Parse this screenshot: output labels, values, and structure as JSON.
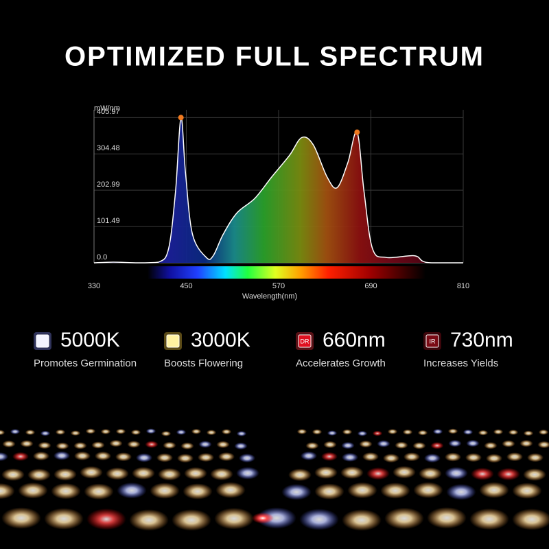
{
  "chart_data": {
    "type": "area",
    "title": "OPTIMIZED FULL SPECTRUM",
    "y_label": "mW/nm",
    "x_label": "Wavelength(nm)",
    "line_color": "#ffffff",
    "marker_color": "#f07a20",
    "grid": true,
    "x": [
      330,
      355,
      387,
      414,
      427,
      436,
      443,
      449,
      458,
      476,
      485,
      498,
      516,
      539,
      561,
      584,
      600,
      615,
      633,
      646,
      660,
      672,
      681,
      692,
      710,
      746,
      757,
      769,
      810
    ],
    "values": [
      0,
      2,
      0,
      2,
      40,
      200,
      406,
      250,
      80,
      15,
      20,
      80,
      140,
      180,
      240,
      300,
      350,
      330,
      240,
      210,
      280,
      365,
      200,
      40,
      15,
      20,
      5,
      0,
      0
    ],
    "xlim": [
      330,
      810
    ],
    "xticks": [
      330,
      450,
      570,
      690,
      810
    ],
    "ylim": [
      0,
      420
    ],
    "yticks": [
      {
        "value": 0,
        "label": "0.0"
      },
      101.49,
      202.99,
      304.48,
      405.97
    ]
  },
  "features": [
    {
      "icon": "",
      "value": "5000K",
      "caption": "Promotes Germination"
    },
    {
      "icon": "",
      "value": "3000K",
      "caption": "Boosts Flowering"
    },
    {
      "icon": "DR",
      "value": "660nm",
      "caption": "Accelerates Growth"
    },
    {
      "icon": "IR",
      "value": "730nm",
      "caption": "Increases Yields"
    }
  ]
}
